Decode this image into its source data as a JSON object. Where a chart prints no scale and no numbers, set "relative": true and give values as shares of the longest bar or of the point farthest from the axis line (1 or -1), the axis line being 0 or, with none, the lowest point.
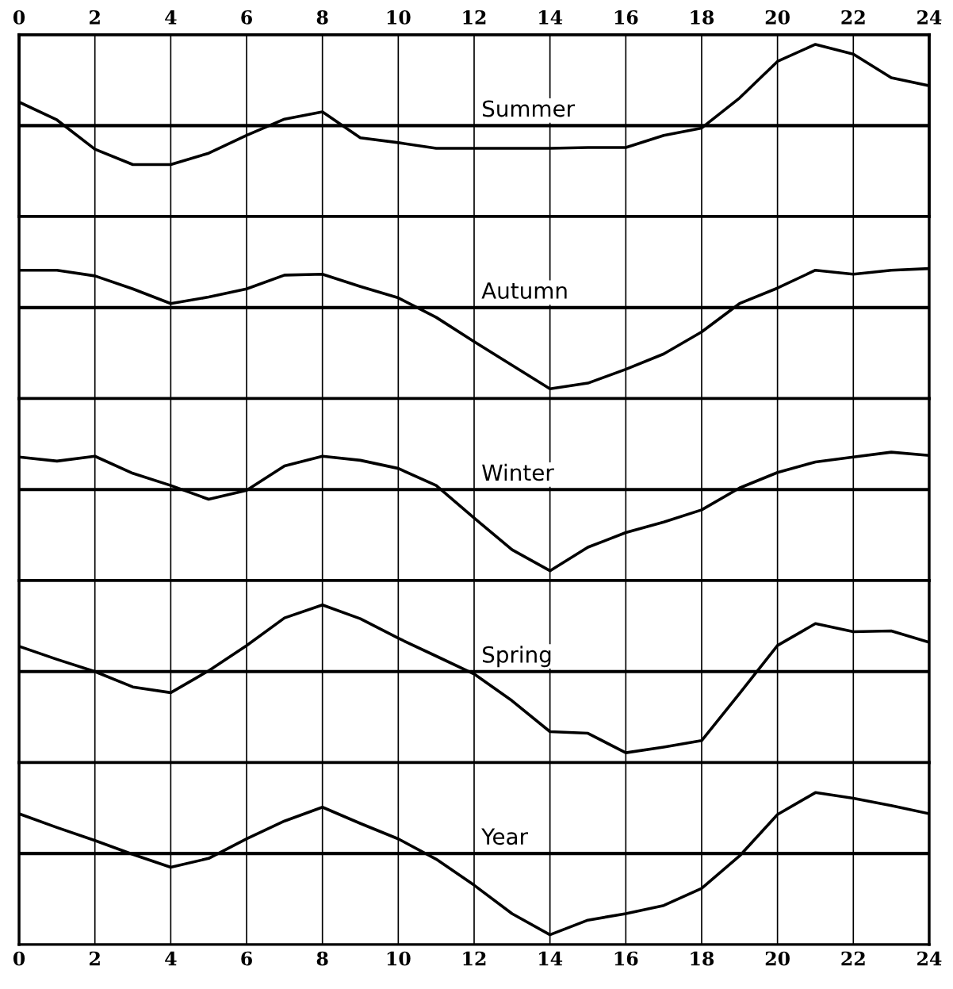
{
  "chart_data": [
    {
      "type": "line",
      "x": [
        0,
        1,
        2,
        3,
        4,
        5,
        6,
        7,
        8,
        9,
        10,
        11,
        12,
        13,
        14,
        15,
        16,
        17,
        18,
        19,
        20,
        21,
        22,
        23,
        24
      ],
      "relative": true,
      "xlim": [
        0,
        24
      ],
      "xticks": [
        0,
        2,
        4,
        6,
        8,
        10,
        12,
        14,
        16,
        18,
        20,
        22,
        24
      ],
      "x2lim": [
        0,
        24
      ],
      "x2ticks": [
        0,
        2,
        4,
        6,
        8,
        10,
        12,
        14,
        16,
        18,
        20,
        22,
        24
      ],
      "tick_labels": false,
      "grid": "x",
      "ref_lines": [
        {
          "axis": "y",
          "value": 0
        }
      ],
      "series": [
        {
          "name": "Summer",
          "color": "#000000",
          "values": [
            0.29,
            0.07,
            -0.29,
            -0.48,
            -0.48,
            -0.34,
            -0.12,
            0.08,
            0.17,
            -0.15,
            -0.21,
            -0.28,
            -0.28,
            -0.28,
            -0.28,
            -0.27,
            -0.27,
            -0.12,
            -0.03,
            0.34,
            0.79,
            1,
            0.88,
            0.59,
            0.49
          ]
        }
      ]
    },
    {
      "type": "line",
      "x": [
        0,
        1,
        2,
        3,
        4,
        5,
        6,
        7,
        8,
        9,
        10,
        11,
        12,
        13,
        14,
        15,
        16,
        17,
        18,
        19,
        20,
        21,
        22,
        23,
        24
      ],
      "relative": true,
      "xlim": [
        0,
        24
      ],
      "xticks": [
        0,
        2,
        4,
        6,
        8,
        10,
        12,
        14,
        16,
        18,
        20,
        22,
        24
      ],
      "tick_labels": false,
      "grid": "x",
      "ref_lines": [
        {
          "axis": "y",
          "value": 0
        }
      ],
      "series": [
        {
          "name": "Autumn",
          "color": "#000000",
          "values": [
            0.46,
            0.46,
            0.39,
            0.23,
            0.05,
            0.13,
            0.23,
            0.4,
            0.41,
            0.26,
            0.12,
            -0.12,
            -0.42,
            -0.71,
            -1,
            -0.93,
            -0.76,
            -0.57,
            -0.3,
            0.05,
            0.24,
            0.46,
            0.41,
            0.46,
            0.48
          ]
        }
      ]
    },
    {
      "type": "line",
      "x": [
        0,
        1,
        2,
        3,
        4,
        5,
        6,
        7,
        8,
        9,
        10,
        11,
        12,
        13,
        14,
        15,
        16,
        17,
        18,
        19,
        20,
        21,
        22,
        23,
        24
      ],
      "relative": true,
      "xlim": [
        0,
        24
      ],
      "xticks": [
        0,
        2,
        4,
        6,
        8,
        10,
        12,
        14,
        16,
        18,
        20,
        22,
        24
      ],
      "tick_labels": false,
      "grid": "x",
      "ref_lines": [
        {
          "axis": "y",
          "value": 0
        }
      ],
      "series": [
        {
          "name": "Winter",
          "color": "#000000",
          "values": [
            0.4,
            0.35,
            0.41,
            0.2,
            0.05,
            -0.12,
            -0.01,
            0.29,
            0.41,
            0.36,
            0.26,
            0.05,
            -0.35,
            -0.74,
            -1,
            -0.71,
            -0.53,
            -0.4,
            -0.25,
            0.02,
            0.21,
            0.34,
            0.4,
            0.46,
            0.42
          ]
        }
      ]
    },
    {
      "type": "line",
      "x": [
        0,
        1,
        2,
        3,
        4,
        5,
        6,
        7,
        8,
        9,
        10,
        11,
        12,
        13,
        14,
        15,
        16,
        17,
        18,
        19,
        20,
        21,
        22,
        23,
        24
      ],
      "relative": true,
      "xlim": [
        0,
        24
      ],
      "xticks": [
        0,
        2,
        4,
        6,
        8,
        10,
        12,
        14,
        16,
        18,
        20,
        22,
        24
      ],
      "tick_labels": false,
      "grid": "x",
      "ref_lines": [
        {
          "axis": "y",
          "value": 0
        }
      ],
      "series": [
        {
          "name": "Spring",
          "color": "#000000",
          "values": [
            0.31,
            0.15,
            0,
            -0.19,
            -0.26,
            0.01,
            0.32,
            0.66,
            0.82,
            0.65,
            0.41,
            0.19,
            -0.03,
            -0.36,
            -0.74,
            -0.76,
            -1,
            -0.93,
            -0.85,
            -0.27,
            0.32,
            0.59,
            0.49,
            0.5,
            0.36
          ]
        }
      ]
    },
    {
      "type": "line",
      "x": [
        0,
        1,
        2,
        3,
        4,
        5,
        6,
        7,
        8,
        9,
        10,
        11,
        12,
        13,
        14,
        15,
        16,
        17,
        18,
        19,
        20,
        21,
        22,
        23,
        24
      ],
      "relative": true,
      "xlim": [
        0,
        24
      ],
      "xticks": [
        0,
        2,
        4,
        6,
        8,
        10,
        12,
        14,
        16,
        18,
        20,
        22,
        24
      ],
      "tick_labels": "x",
      "grid": "x",
      "ref_lines": [
        {
          "axis": "y",
          "value": 0
        }
      ],
      "series": [
        {
          "name": "Year",
          "color": "#000000",
          "values": [
            0.49,
            0.32,
            0.16,
            -0.01,
            -0.17,
            -0.06,
            0.18,
            0.4,
            0.57,
            0.37,
            0.18,
            -0.07,
            -0.39,
            -0.74,
            -1,
            -0.82,
            -0.74,
            -0.64,
            -0.43,
            -0.03,
            0.48,
            0.75,
            0.68,
            0.59,
            0.49
          ]
        }
      ]
    }
  ]
}
